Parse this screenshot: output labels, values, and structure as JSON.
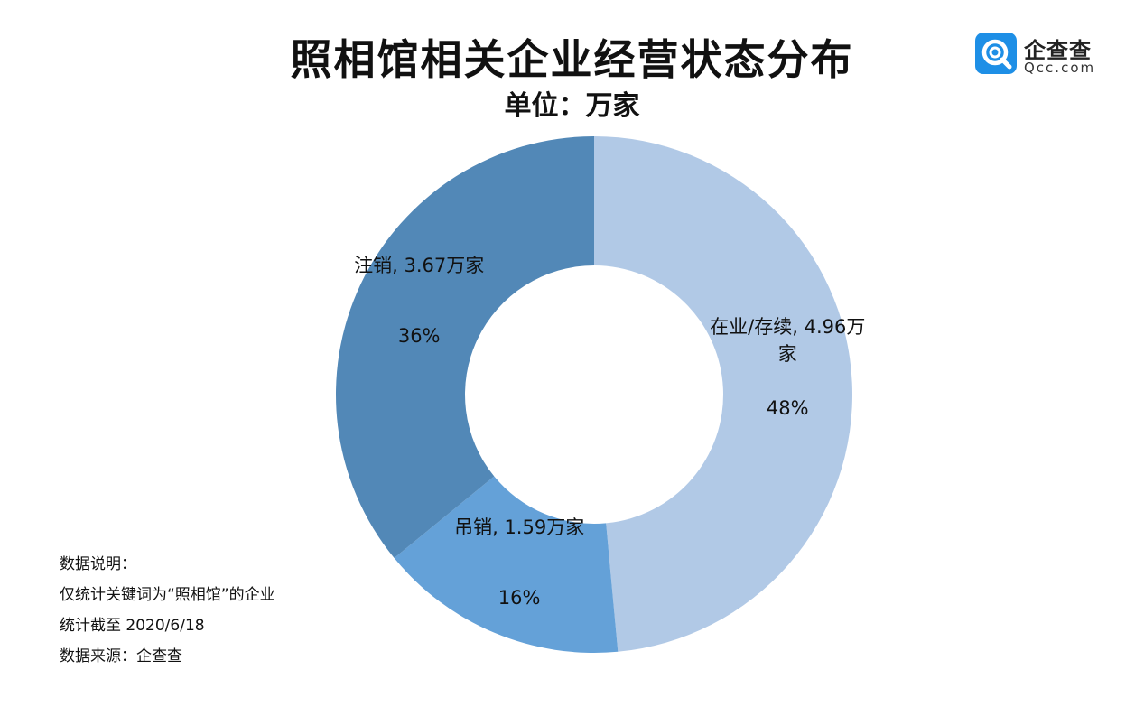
{
  "header": {
    "title": "照相馆相关企业经营状态分布",
    "subtitle": "单位：万家"
  },
  "logo": {
    "name": "企查查",
    "domain": "Qcc.com",
    "icon": "qcc-q-icon",
    "color": "#1E8FE6"
  },
  "notes": {
    "line1": "数据说明：",
    "line2": "仅统计关键词为“照相馆”的企业",
    "line3": "统计截至 2020/6/18",
    "line4": "数据来源：企查查"
  },
  "chart_data": {
    "type": "pie",
    "title": "照相馆相关企业经营状态分布",
    "subtitle": "单位：万家",
    "unit": "万家",
    "donut": true,
    "slices": [
      {
        "label": "在业/存续",
        "value": 4.96,
        "percent": 48,
        "color": "#B1C9E6",
        "text_line1": "在业/存续, 4.96万",
        "text_line2": "家",
        "percent_text": "48%"
      },
      {
        "label": "吊销",
        "value": 1.59,
        "percent": 16,
        "color": "#64A1D8",
        "text_line1": "吊销, 1.59万家",
        "text_line2": "",
        "percent_text": "16%"
      },
      {
        "label": "注销",
        "value": 3.67,
        "percent": 36,
        "color": "#5288B7",
        "text_line1": "注销, 3.67万家",
        "text_line2": "",
        "percent_text": "36%"
      }
    ]
  }
}
